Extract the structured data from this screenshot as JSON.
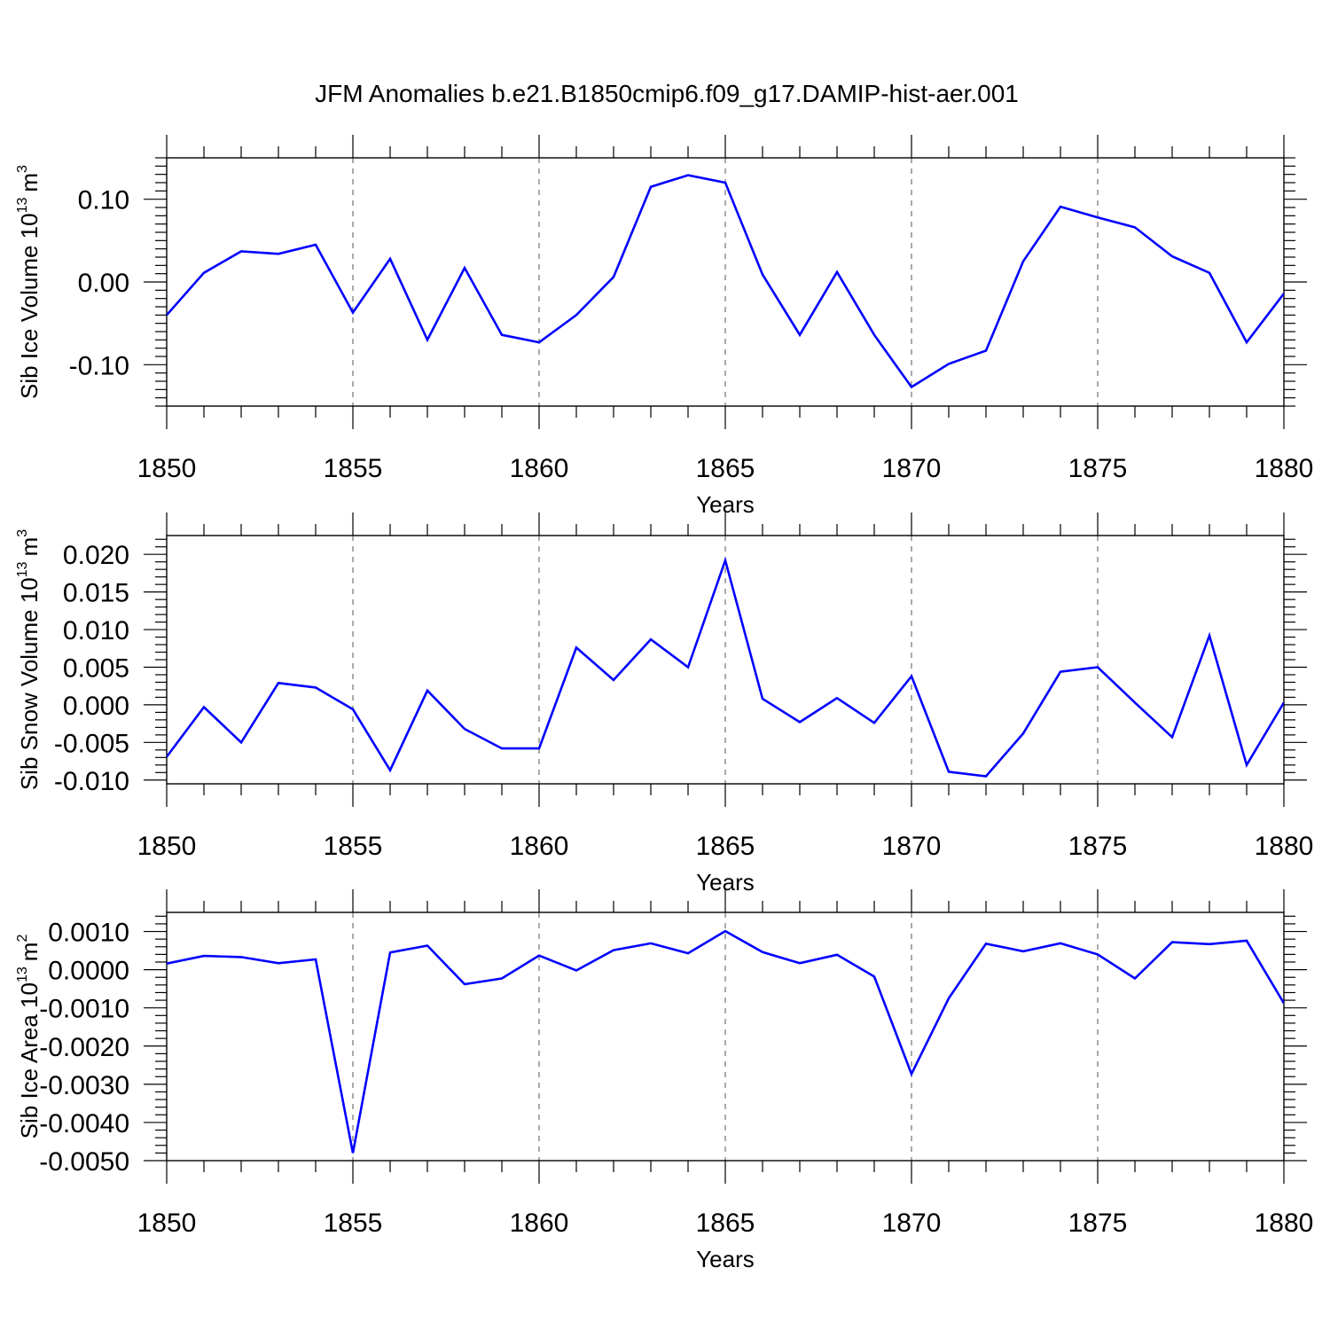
{
  "title": "JFM Anomalies b.e21.B1850cmip6.f09_g17.DAMIP-hist-aer.001",
  "colors": {
    "line": "#0000ff",
    "frame": "#000000",
    "grid": "#555555"
  },
  "chart_data": [
    {
      "type": "line",
      "xlabel": "Years",
      "ylabel": "Sib Ice Volume 10",
      "ylabel_sup": "13",
      "ylabel_unit": "m",
      "ylabel_unit_sup": "3",
      "xlim": [
        1850,
        1880
      ],
      "ylim": [
        -0.15,
        0.15
      ],
      "xticks": [
        1850,
        1855,
        1860,
        1865,
        1870,
        1875,
        1880
      ],
      "xtick_labels": [
        "1850",
        "1855",
        "1860",
        "1865",
        "1870",
        "1875",
        "1880"
      ],
      "yticks": [
        0.1,
        0.0,
        -0.1
      ],
      "ytick_labels": [
        "0.10",
        "0.00",
        "-0.10"
      ],
      "grid": "vertical dashed at major x ticks",
      "series": [
        {
          "x": [
            1850,
            1851,
            1852,
            1853,
            1854,
            1855,
            1856,
            1857,
            1858,
            1859,
            1860,
            1861,
            1862,
            1863,
            1864,
            1865,
            1866,
            1867,
            1868,
            1869,
            1870,
            1871,
            1872,
            1873,
            1874,
            1875,
            1876,
            1877,
            1878,
            1879,
            1880
          ],
          "y": [
            -0.04,
            0.011,
            0.037,
            0.034,
            0.045,
            -0.037,
            0.028,
            -0.07,
            0.017,
            -0.064,
            -0.073,
            -0.04,
            0.006,
            0.115,
            0.129,
            0.12,
            0.009,
            -0.064,
            0.012,
            -0.064,
            -0.127,
            -0.099,
            -0.083,
            0.025,
            0.091,
            0.078,
            0.066,
            0.031,
            0.011,
            -0.073,
            -0.014
          ]
        }
      ]
    },
    {
      "type": "line",
      "xlabel": "Years",
      "ylabel": "Sib Snow Volume 10",
      "ylabel_sup": "13",
      "ylabel_unit": "m",
      "ylabel_unit_sup": "3",
      "xlim": [
        1850,
        1880
      ],
      "ylim": [
        -0.0105,
        0.0225
      ],
      "xticks": [
        1850,
        1855,
        1860,
        1865,
        1870,
        1875,
        1880
      ],
      "xtick_labels": [
        "1850",
        "1855",
        "1860",
        "1865",
        "1870",
        "1875",
        "1880"
      ],
      "yticks": [
        0.02,
        0.015,
        0.01,
        0.005,
        0.0,
        -0.005,
        -0.01
      ],
      "ytick_labels": [
        "0.020",
        "0.015",
        "0.010",
        "0.005",
        "0.000",
        "-0.005",
        "-0.010"
      ],
      "grid": "vertical dashed at major x ticks",
      "series": [
        {
          "x": [
            1850,
            1851,
            1852,
            1853,
            1854,
            1855,
            1856,
            1857,
            1858,
            1859,
            1860,
            1861,
            1862,
            1863,
            1864,
            1865,
            1866,
            1867,
            1868,
            1869,
            1870,
            1871,
            1872,
            1873,
            1874,
            1875,
            1876,
            1877,
            1878,
            1879,
            1880
          ],
          "y": [
            -0.0069,
            -0.0003,
            -0.005,
            0.0029,
            0.0023,
            -0.0006,
            -0.0087,
            0.0019,
            -0.0032,
            -0.0058,
            -0.0058,
            0.0076,
            0.0033,
            0.0087,
            0.005,
            0.0192,
            0.0008,
            -0.0023,
            0.0009,
            -0.0024,
            0.0038,
            -0.0089,
            -0.0095,
            -0.0038,
            0.0044,
            0.005,
            0.0003,
            -0.0043,
            0.0092,
            -0.008,
            0.0003
          ]
        }
      ]
    },
    {
      "type": "line",
      "xlabel": "Years",
      "ylabel": "Sib Ice Area 10",
      "ylabel_sup": "13",
      "ylabel_unit": "m",
      "ylabel_unit_sup": "2",
      "xlim": [
        1850,
        1880
      ],
      "ylim": [
        -0.005,
        0.0015
      ],
      "xticks": [
        1850,
        1855,
        1860,
        1865,
        1870,
        1875,
        1880
      ],
      "xtick_labels": [
        "1850",
        "1855",
        "1860",
        "1865",
        "1870",
        "1875",
        "1880"
      ],
      "yticks": [
        0.001,
        0.0,
        -0.001,
        -0.002,
        -0.003,
        -0.004,
        -0.005
      ],
      "ytick_labels": [
        "0.0010",
        "0.0000",
        "-0.0010",
        "-0.0020",
        "-0.0030",
        "-0.0040",
        "-0.0050"
      ],
      "grid": "vertical dashed at major x ticks",
      "series": [
        {
          "x": [
            1850,
            1851,
            1852,
            1853,
            1854,
            1855,
            1856,
            1857,
            1858,
            1859,
            1860,
            1861,
            1862,
            1863,
            1864,
            1865,
            1866,
            1867,
            1868,
            1869,
            1870,
            1871,
            1872,
            1873,
            1874,
            1875,
            1876,
            1877,
            1878,
            1879,
            1880
          ],
          "y": [
            0.00016,
            0.00036,
            0.00033,
            0.00017,
            0.00027,
            -0.0048,
            0.00045,
            0.00063,
            -0.00038,
            -0.00023,
            0.00037,
            -2e-05,
            0.00051,
            0.00069,
            0.00043,
            0.00101,
            0.00046,
            0.00017,
            0.00039,
            -0.00018,
            -0.00273,
            -0.00075,
            0.00068,
            0.00048,
            0.00069,
            0.0004,
            -0.00023,
            0.00072,
            0.00067,
            0.00076,
            -0.00088
          ]
        }
      ]
    }
  ]
}
